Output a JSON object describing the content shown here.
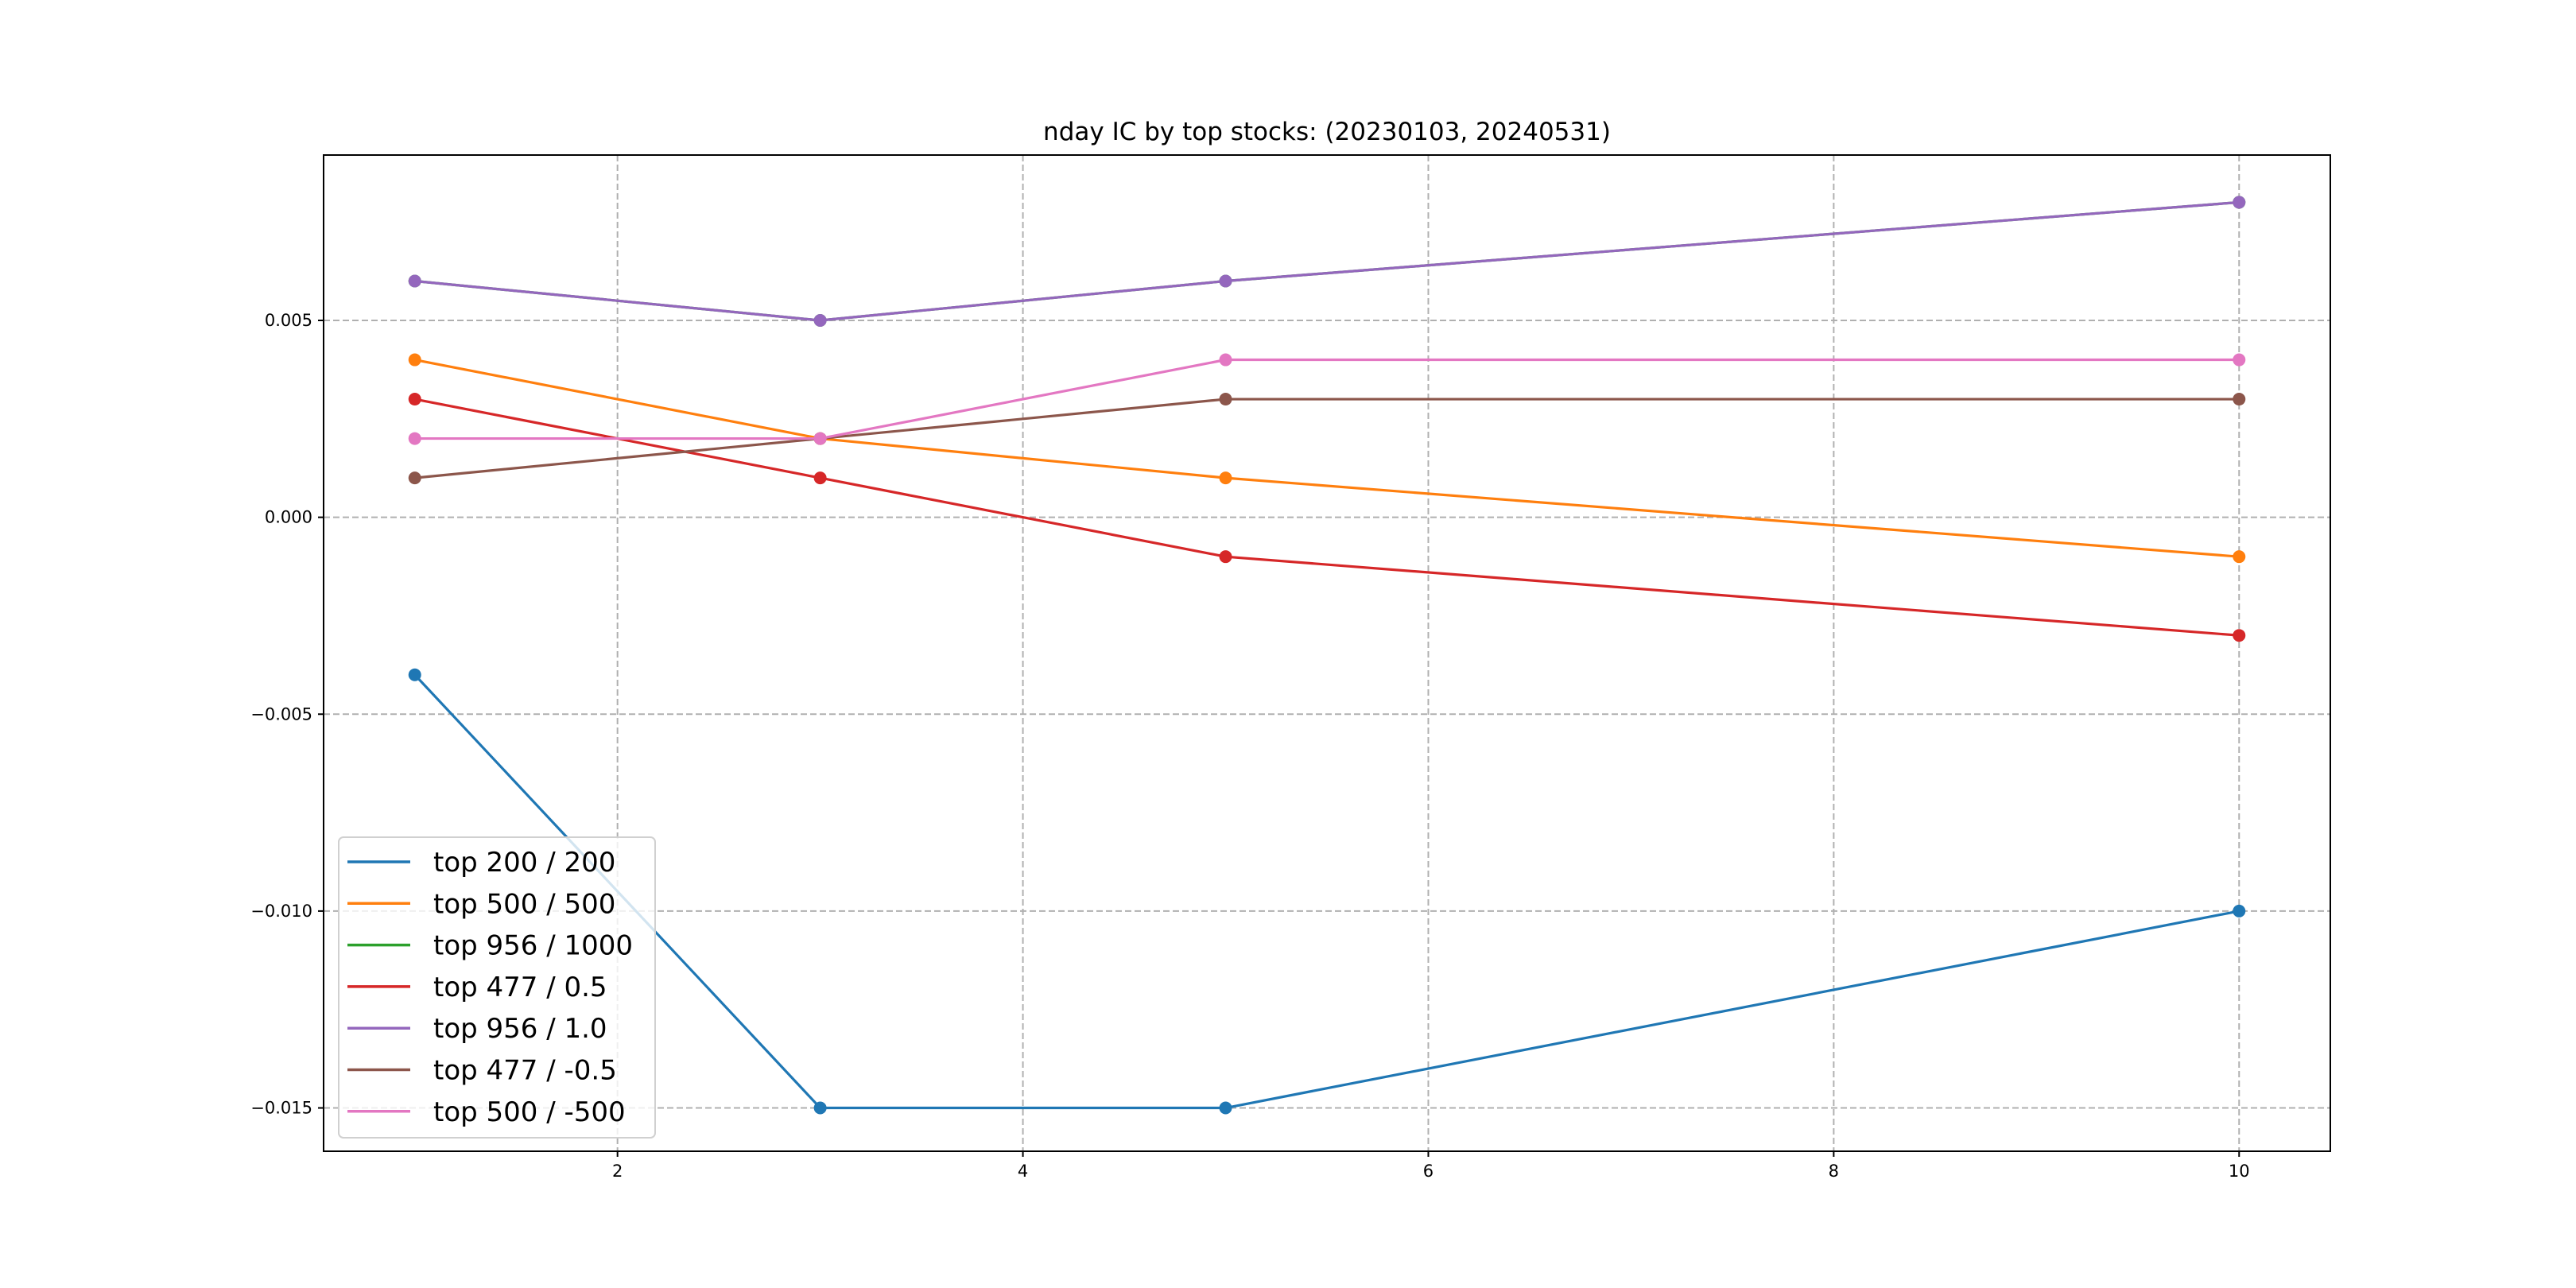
{
  "chart_data": {
    "type": "line",
    "title": "nday IC by top stocks: (20230103, 20240531)",
    "xlabel": "",
    "ylabel": "",
    "x": [
      1,
      3,
      5,
      10
    ],
    "xlim": [
      0.55,
      10.45
    ],
    "ylim": [
      -0.0161,
      0.0092
    ],
    "xticks": [
      2,
      4,
      6,
      8,
      10
    ],
    "xtick_labels": [
      "2",
      "4",
      "6",
      "8",
      "10"
    ],
    "yticks": [
      0.005,
      0.0,
      -0.005,
      -0.01,
      -0.015
    ],
    "ytick_labels": [
      "0.005",
      "0.000",
      "−0.005",
      "−0.010",
      "−0.015"
    ],
    "grid": true,
    "legend_placement": "lower-left",
    "series": [
      {
        "name": "top 200 / 200",
        "color": "#1f77b4",
        "values": [
          -0.004,
          -0.015,
          -0.015,
          -0.01
        ]
      },
      {
        "name": "top 500 / 500",
        "color": "#ff7f0e",
        "values": [
          0.004,
          0.002,
          0.001,
          -0.001
        ]
      },
      {
        "name": "top 956 / 1000",
        "color": "#2ca02c",
        "values": [
          0.006,
          0.005,
          0.006,
          0.008
        ]
      },
      {
        "name": "top 477 / 0.5",
        "color": "#d62728",
        "values": [
          0.003,
          0.001,
          -0.001,
          -0.003
        ]
      },
      {
        "name": "top 956 / 1.0",
        "color": "#9467bd",
        "values": [
          0.006,
          0.005,
          0.006,
          0.008
        ]
      },
      {
        "name": "top 477 / -0.5",
        "color": "#8c564b",
        "values": [
          0.001,
          0.002,
          0.003,
          0.003
        ]
      },
      {
        "name": "top 500 / -500",
        "color": "#e377c2",
        "values": [
          0.002,
          0.002,
          0.004,
          0.004
        ]
      }
    ]
  }
}
